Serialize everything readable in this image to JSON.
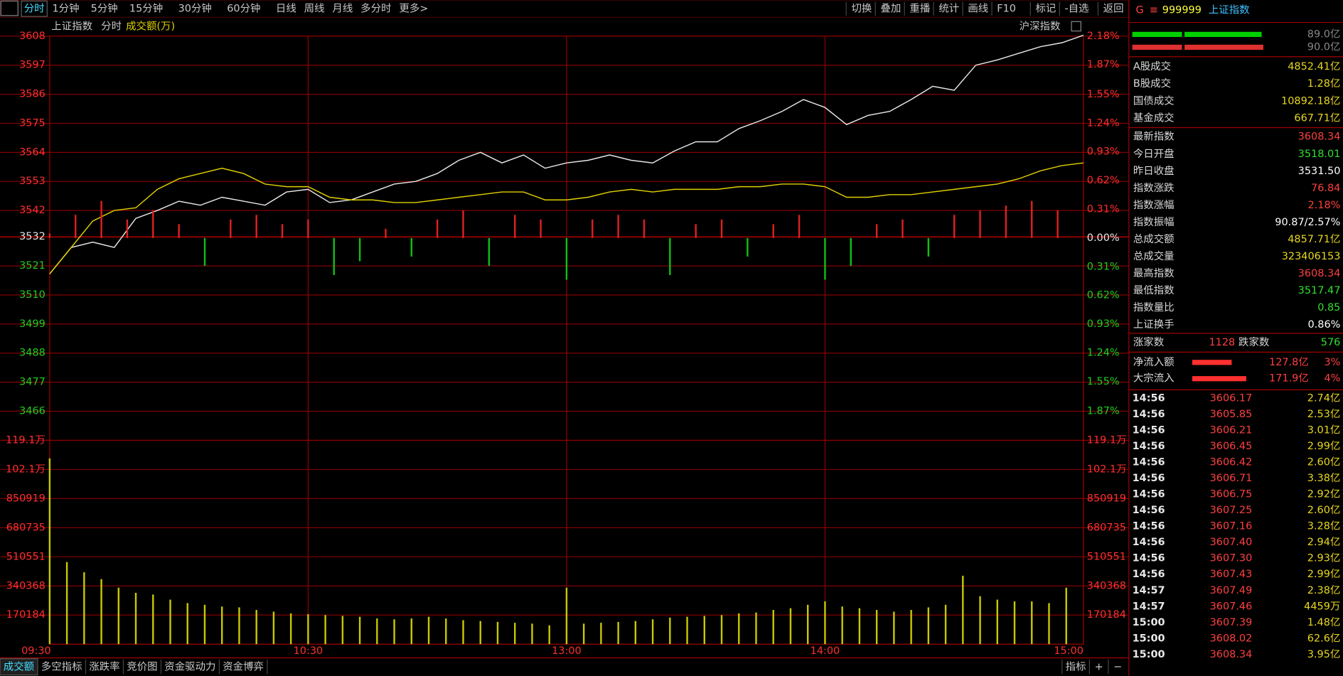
{
  "toolbar": {
    "periods": [
      "分时",
      "1分钟",
      "5分钟",
      "15分钟",
      "30分钟",
      "60分钟",
      "日线",
      "周线",
      "月线",
      "多分时",
      "更多>"
    ],
    "actions": [
      "切换",
      "叠加",
      "重播",
      "统计",
      "画线",
      "F10",
      "标记",
      "-自选",
      "返回"
    ]
  },
  "chart_header": {
    "index_name": "上证指数",
    "period": "分时",
    "indicator": "成交额(万)",
    "compare": "沪深指数"
  },
  "chart_data": [
    {
      "type": "line",
      "x": [
        0,
        5,
        10,
        15,
        20,
        25,
        30,
        35,
        40,
        45,
        50,
        55,
        60,
        65,
        70,
        75,
        80,
        85,
        90,
        95,
        100,
        105,
        110,
        115,
        120,
        125,
        130,
        135,
        140,
        145,
        150,
        155,
        160,
        165,
        170,
        175,
        180,
        185,
        190,
        195,
        200,
        205,
        210,
        215,
        220,
        225,
        230,
        235,
        240
      ],
      "xlim": [
        0,
        240
      ],
      "ylim": [
        3466,
        3608
      ],
      "yticks": [
        3608,
        3597,
        3586,
        3575,
        3564,
        3553,
        3542,
        3532,
        3521,
        3510,
        3499,
        3488,
        3477,
        3466
      ],
      "y2lim": [
        -1.87,
        2.18
      ],
      "y2ticks": [
        {
          "value": 2.18,
          "label": "2.18%"
        },
        {
          "value": 1.87,
          "label": "1.87%"
        },
        {
          "value": 1.55,
          "label": "1.55%"
        },
        {
          "value": 1.24,
          "label": "1.24%"
        },
        {
          "value": 0.93,
          "label": "0.93%"
        },
        {
          "value": 0.62,
          "label": "0.62%"
        },
        {
          "value": 0.31,
          "label": "0.31%"
        },
        {
          "value": 0,
          "label": "0.00%"
        },
        {
          "value": -0.31,
          "label": "0.31%"
        },
        {
          "value": -0.62,
          "label": "0.62%"
        },
        {
          "value": -0.93,
          "label": "0.93%"
        },
        {
          "value": -1.24,
          "label": "1.24%"
        },
        {
          "value": -1.55,
          "label": "1.55%"
        },
        {
          "value": -1.87,
          "label": "1.87%"
        }
      ],
      "grid": true,
      "series": [
        {
          "color": "#e8e8e8",
          "values": [
            3518,
            3528,
            3530,
            3528,
            3539,
            3542,
            3545.5,
            3544,
            3547,
            3545.5,
            3544,
            3549,
            3550,
            3545,
            3546,
            3549,
            3552,
            3553,
            3556,
            3561,
            3564,
            3560,
            3563,
            3558,
            3560,
            3561,
            3563,
            3561,
            3560,
            3564.5,
            3568,
            3568,
            3573,
            3576,
            3579.5,
            3584,
            3581,
            3574.5,
            3578,
            3579.5,
            3584,
            3589,
            3587.5,
            3597,
            3599,
            3601.5,
            3604,
            3605.5,
            3608.34
          ]
        },
        {
          "color": "#e0d000",
          "values": [
            3518,
            3528,
            3538,
            3542,
            3543,
            3550,
            3554,
            3556,
            3558,
            3556,
            3552,
            3551,
            3551,
            3547,
            3546,
            3546,
            3545,
            3545,
            3546,
            3547,
            3548,
            3549,
            3549,
            3546,
            3546,
            3547,
            3549,
            3550,
            3549,
            3550,
            3550,
            3550,
            3551,
            3551,
            3552,
            3552,
            3551,
            3547,
            3547,
            3548,
            3548,
            3549,
            3550,
            3551,
            3552,
            3554,
            3557,
            3559,
            3560
          ]
        },
        {
          "type": "bar",
          "axis": "y2",
          "color": "#e02020",
          "negative_color": "#10c010",
          "x": [
            0,
            6,
            12,
            18,
            24,
            30,
            36,
            42,
            48,
            54,
            60,
            66,
            72,
            78,
            84,
            90,
            96,
            102,
            108,
            114,
            120,
            126,
            132,
            138,
            144,
            150,
            156,
            162,
            168,
            174,
            180,
            186,
            192,
            198,
            204,
            210,
            216,
            222,
            228,
            234
          ],
          "values": [
            0.05,
            0.25,
            0.4,
            0.2,
            0.3,
            0.15,
            -0.3,
            0.2,
            0.25,
            0.15,
            0.2,
            -0.4,
            -0.25,
            0.1,
            -0.2,
            0.2,
            0.3,
            -0.3,
            0.25,
            0.2,
            -0.45,
            0.2,
            0.25,
            0.2,
            -0.4,
            0.15,
            0.2,
            -0.2,
            0.15,
            0.25,
            -0.45,
            -0.3,
            0.15,
            0.2,
            -0.2,
            0.25,
            0.3,
            0.35,
            0.4,
            0.3
          ]
        }
      ]
    },
    {
      "type": "bar",
      "color": "#c8c800",
      "x": [
        0,
        4,
        8,
        12,
        16,
        20,
        24,
        28,
        32,
        36,
        40,
        44,
        48,
        52,
        56,
        60,
        64,
        68,
        72,
        76,
        80,
        84,
        88,
        92,
        96,
        100,
        104,
        108,
        112,
        116,
        120,
        124,
        128,
        132,
        136,
        140,
        144,
        148,
        152,
        156,
        160,
        164,
        168,
        172,
        176,
        180,
        184,
        188,
        192,
        196,
        200,
        204,
        208,
        212,
        216,
        220,
        224,
        228,
        232,
        236
      ],
      "values": [
        1086000,
        480000,
        420000,
        380000,
        330000,
        300000,
        290000,
        260000,
        240000,
        230000,
        220000,
        215000,
        200000,
        190000,
        180000,
        175000,
        170000,
        165000,
        160000,
        150000,
        145000,
        150000,
        160000,
        150000,
        140000,
        135000,
        130000,
        125000,
        120000,
        110000,
        330000,
        120000,
        125000,
        130000,
        135000,
        145000,
        155000,
        160000,
        165000,
        170000,
        180000,
        185000,
        200000,
        210000,
        230000,
        250000,
        220000,
        210000,
        200000,
        190000,
        200000,
        215000,
        230000,
        400000,
        280000,
        260000,
        250000,
        250000,
        240000,
        330000
      ],
      "xlim": [
        0,
        240
      ],
      "xticks": [
        {
          "value": 0,
          "label": "09:30"
        },
        {
          "value": 60,
          "label": "10:30"
        },
        {
          "value": 120,
          "label": "13:00"
        },
        {
          "value": 180,
          "label": "14:00"
        },
        {
          "value": 240,
          "label": "15:00"
        }
      ],
      "ylim": [
        0,
        1191288
      ],
      "yticks": [
        {
          "value": 1191288,
          "label": "119.1万"
        },
        {
          "value": 1021104,
          "label": "102.1万"
        },
        850919,
        680735,
        510551,
        340368,
        170184
      ],
      "grid": true
    }
  ],
  "bottom_tabs": {
    "tabs": [
      "成交额",
      "多空指标",
      "涨跌率",
      "竞价图",
      "资金驱动力",
      "资金博弈"
    ],
    "right": [
      "指标",
      "+",
      "−"
    ]
  },
  "sidebar": {
    "prefix": "G",
    "menu": "≡",
    "code": "999999",
    "name": "上证指数",
    "bars": [
      {
        "label": "89.0亿",
        "color": "#00d000"
      },
      {
        "label": "90.0亿",
        "color": "#e03030"
      }
    ],
    "stats": [
      {
        "label": "A股成交",
        "value": "4852.41亿",
        "color": "#e8d820"
      },
      {
        "label": "B股成交",
        "value": "1.28亿",
        "color": "#e8d820"
      },
      {
        "label": "国债成交",
        "value": "10892.18亿",
        "color": "#e8d820"
      },
      {
        "label": "基金成交",
        "value": "667.71亿",
        "color": "#e8d820"
      },
      {
        "label": "最新指数",
        "value": "3608.34",
        "color": "#ff4040"
      },
      {
        "label": "今日开盘",
        "value": "3518.01",
        "color": "#30e030"
      },
      {
        "label": "昨日收盘",
        "value": "3531.50",
        "color": "#ffffff"
      },
      {
        "label": "指数涨跌",
        "value": "76.84",
        "color": "#ff4040"
      },
      {
        "label": "指数涨幅",
        "value": "2.18%",
        "color": "#ff4040"
      },
      {
        "label": "指数振幅",
        "value": "90.87/2.57%",
        "color": "#ffffff"
      },
      {
        "label": "总成交额",
        "value": "4857.71亿",
        "color": "#e8d820"
      },
      {
        "label": "总成交量",
        "value": "323406153",
        "color": "#e8d820"
      },
      {
        "label": "最高指数",
        "value": "3608.34",
        "color": "#ff4040"
      },
      {
        "label": "最低指数",
        "value": "3517.47",
        "color": "#30e030"
      },
      {
        "label": "指数量比",
        "value": "0.85",
        "color": "#30e030"
      },
      {
        "label": "上证换手",
        "value": "0.86%",
        "color": "#ffffff"
      }
    ],
    "breadth": {
      "up_label": "涨家数",
      "up": "1128",
      "down_label": "跌家数",
      "down": "576"
    },
    "flows": [
      {
        "label": "净流入额",
        "amount": "127.8亿",
        "pct": "3%"
      },
      {
        "label": "大宗流入",
        "amount": "171.9亿",
        "pct": "4%"
      }
    ],
    "trades": [
      {
        "time": "14:56",
        "price": "3606.17",
        "amount": "2.74亿"
      },
      {
        "time": "14:56",
        "price": "3605.85",
        "amount": "2.53亿"
      },
      {
        "time": "14:56",
        "price": "3606.21",
        "amount": "3.01亿"
      },
      {
        "time": "14:56",
        "price": "3606.45",
        "amount": "2.99亿"
      },
      {
        "time": "14:56",
        "price": "3606.42",
        "amount": "2.60亿"
      },
      {
        "time": "14:56",
        "price": "3606.71",
        "amount": "3.38亿"
      },
      {
        "time": "14:56",
        "price": "3606.75",
        "amount": "2.92亿"
      },
      {
        "time": "14:56",
        "price": "3607.25",
        "amount": "2.60亿"
      },
      {
        "time": "14:56",
        "price": "3607.16",
        "amount": "3.28亿"
      },
      {
        "time": "14:56",
        "price": "3607.40",
        "amount": "2.94亿"
      },
      {
        "time": "14:56",
        "price": "3607.30",
        "amount": "2.93亿"
      },
      {
        "time": "14:56",
        "price": "3607.43",
        "amount": "2.99亿"
      },
      {
        "time": "14:57",
        "price": "3607.49",
        "amount": "2.38亿"
      },
      {
        "time": "14:57",
        "price": "3607.46",
        "amount": "4459万"
      },
      {
        "time": "15:00",
        "price": "3607.39",
        "amount": "1.48亿"
      },
      {
        "time": "15:00",
        "price": "3608.02",
        "amount": "62.6亿"
      },
      {
        "time": "15:00",
        "price": "3608.34",
        "amount": "3.95亿"
      }
    ]
  }
}
